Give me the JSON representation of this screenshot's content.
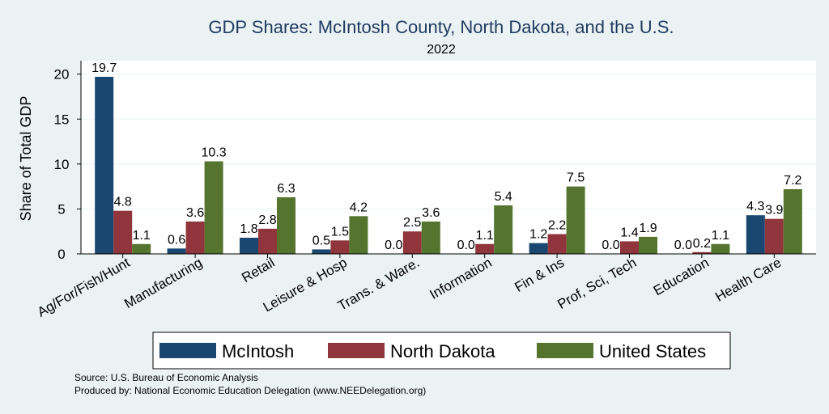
{
  "chart_data": {
    "type": "bar",
    "title": "GDP Shares: McIntosh County, North Dakota, and the U.S.",
    "subtitle": "2022",
    "ylabel": "Share of Total GDP",
    "xlabel": "",
    "ylim": [
      0,
      21.5
    ],
    "yticks": [
      0,
      5,
      10,
      15,
      20
    ],
    "grid": true,
    "legend_position": "bottom",
    "categories": [
      "Ag/For/Fish/Hunt",
      "Manufacturing",
      "Retail",
      "Leisure & Hosp",
      "Trans. & Ware.",
      "Information",
      "Fin & Ins",
      "Prof, Sci, Tech",
      "Education",
      "Health Care"
    ],
    "series": [
      {
        "name": "McIntosh",
        "color": "#1a476f",
        "values": [
          19.7,
          0.6,
          1.8,
          0.5,
          0.0,
          0.0,
          1.2,
          0.0,
          0.0,
          4.3
        ],
        "labels": [
          "19.7",
          "0.6",
          "1.8",
          "0.5",
          "0.0",
          "0.0",
          "1.2",
          "0.0",
          "0.0",
          "4.3"
        ]
      },
      {
        "name": "North Dakota",
        "color": "#90353b",
        "values": [
          4.8,
          3.6,
          2.8,
          1.5,
          2.5,
          1.1,
          2.2,
          1.4,
          0.2,
          3.9
        ],
        "labels": [
          "4.8",
          "3.6",
          "2.8",
          "1.5",
          "2.5",
          "1.1",
          "2.2",
          "1.4",
          "0.2",
          "3.9"
        ]
      },
      {
        "name": "United States",
        "color": "#55752f",
        "values": [
          1.1,
          10.3,
          6.3,
          4.2,
          3.6,
          5.4,
          7.5,
          1.9,
          1.1,
          7.2
        ],
        "labels": [
          "1.1",
          "10.3",
          "6.3",
          "4.2",
          "3.6",
          "5.4",
          "7.5",
          "1.9",
          "1.1",
          "7.2"
        ]
      }
    ]
  },
  "source": {
    "line1": "Source: U.S. Bureau of Economic Analysis",
    "line2": "Produced by: National Economic Education Delegation (www.NEEDelegation.org)"
  }
}
